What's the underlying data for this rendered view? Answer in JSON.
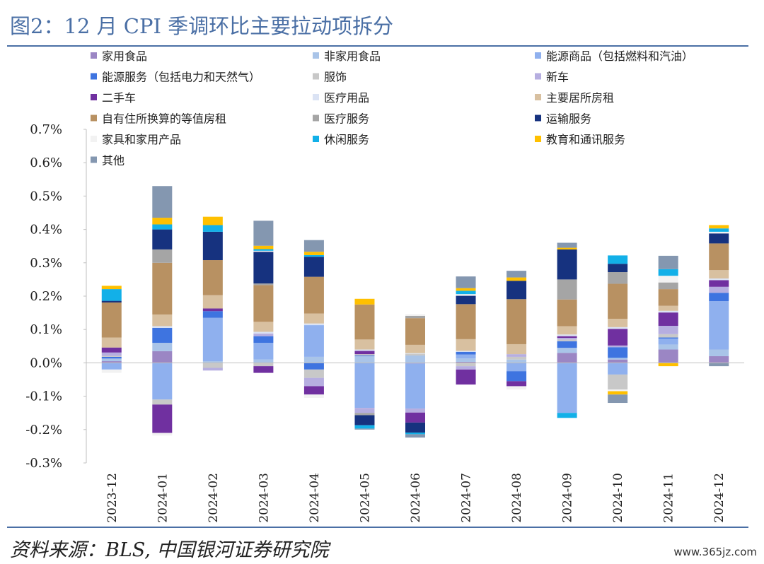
{
  "title": "图2：12 月 CPI 季调环比主要拉动项拆分",
  "source": "资料来源：BLS, 中国银河证券研究院",
  "watermark": "www.365jz.com",
  "chart_data": {
    "type": "bar",
    "stacked": true,
    "title": "图2：12 月 CPI 季调环比主要拉动项拆分",
    "xlabel": "",
    "ylabel": "",
    "ylim": [
      -0.3,
      0.7
    ],
    "yticks": [
      "-0.3%",
      "-0.2%",
      "-0.1%",
      "0.0%",
      "0.1%",
      "0.2%",
      "0.3%",
      "0.4%",
      "0.5%",
      "0.6%",
      "0.7%"
    ],
    "categories": [
      "2023-12",
      "2024-01",
      "2024-02",
      "2024-03",
      "2024-04",
      "2024-05",
      "2024-06",
      "2024-07",
      "2024-08",
      "2024-09",
      "2024-10",
      "2024-11",
      "2024-12"
    ],
    "legend_position": "top",
    "series": [
      {
        "name": "家用食品",
        "color": "#9b86c4",
        "values": [
          0.005,
          0.035,
          0.0,
          0.0,
          0.0,
          0.0,
          -0.002,
          0.003,
          0.0,
          0.03,
          0.01,
          0.04,
          0.02
        ]
      },
      {
        "name": "非家用食品",
        "color": "#a9c4e8",
        "values": [
          0.008,
          0.025,
          0.005,
          0.01,
          0.018,
          0.02,
          0.022,
          0.01,
          0.01,
          0.015,
          0.005,
          0.015,
          0.02
        ]
      },
      {
        "name": "能源商品（包括燃料和汽油）",
        "color": "#8fb0ee",
        "values": [
          -0.02,
          -0.11,
          0.13,
          0.05,
          0.095,
          -0.135,
          -0.135,
          0.012,
          -0.025,
          -0.15,
          -0.035,
          0.018,
          0.145
        ]
      },
      {
        "name": "能源服务（包括电力和天然气）",
        "color": "#3e74e0",
        "values": [
          0.005,
          0.045,
          0.02,
          0.02,
          -0.02,
          0.002,
          0.0,
          0.008,
          -0.03,
          0.02,
          0.032,
          0.003,
          0.025
        ]
      },
      {
        "name": "服饰",
        "color": "#c8c8c8",
        "values": [
          0.003,
          -0.015,
          -0.015,
          -0.01,
          -0.025,
          0.004,
          0.005,
          -0.01,
          0.008,
          0.005,
          -0.045,
          0.01,
          0.0
        ]
      },
      {
        "name": "新车",
        "color": "#b6aee0",
        "values": [
          0.01,
          0.0,
          -0.008,
          0.008,
          -0.025,
          -0.015,
          -0.012,
          -0.01,
          0.008,
          0.005,
          0.005,
          0.025,
          0.018
        ]
      },
      {
        "name": "二手车",
        "color": "#7030a0",
        "values": [
          0.015,
          -0.085,
          0.008,
          -0.02,
          -0.025,
          0.01,
          -0.03,
          -0.045,
          -0.015,
          0.005,
          0.05,
          0.04,
          0.02
        ]
      },
      {
        "name": "医疗用品",
        "color": "#dbe3f4",
        "values": [
          0.0,
          0.005,
          0.0,
          0.005,
          0.005,
          0.004,
          0.002,
          0.003,
          0.0,
          0.005,
          0.005,
          0.005,
          0.005
        ]
      },
      {
        "name": "主要居所房租",
        "color": "#d8c0a0",
        "values": [
          0.03,
          0.035,
          0.04,
          0.03,
          0.03,
          0.03,
          0.025,
          0.035,
          0.03,
          0.025,
          0.025,
          0.015,
          0.025
        ]
      },
      {
        "name": "自有住所换算的等值房租",
        "color": "#b89162",
        "values": [
          0.105,
          0.155,
          0.105,
          0.11,
          0.11,
          0.105,
          0.08,
          0.105,
          0.135,
          0.08,
          0.105,
          0.05,
          0.08
        ]
      },
      {
        "name": "医疗服务",
        "color": "#a5a5a5",
        "values": [
          0.0,
          0.04,
          0.0,
          0.005,
          0.0,
          -0.007,
          0.007,
          0.0,
          0.0,
          0.06,
          0.035,
          0.02,
          0.0
        ]
      },
      {
        "name": "运输服务",
        "color": "#16327f",
        "values": [
          0.005,
          0.06,
          0.085,
          0.095,
          0.06,
          -0.03,
          -0.03,
          0.025,
          0.055,
          0.09,
          0.025,
          0.0,
          0.03
        ]
      },
      {
        "name": "家具和家用产品",
        "color": "#f2f2f2",
        "values": [
          -0.01,
          -0.008,
          0.0,
          0.003,
          -0.01,
          0.0,
          0.005,
          0.005,
          -0.01,
          0.0,
          -0.005,
          0.02,
          0.005
        ]
      },
      {
        "name": "休闲服务",
        "color": "#12b0e8",
        "values": [
          0.035,
          0.015,
          0.02,
          0.005,
          0.005,
          -0.01,
          -0.005,
          0.01,
          0.0,
          -0.015,
          0.025,
          0.02,
          0.01
        ]
      },
      {
        "name": "教育和通讯服务",
        "color": "#ffc000",
        "values": [
          0.01,
          0.02,
          0.025,
          0.01,
          0.01,
          0.017,
          0.0,
          0.008,
          0.01,
          0.005,
          -0.01,
          -0.01,
          0.01
        ]
      },
      {
        "name": "其他",
        "color": "#8497b0",
        "values": [
          0.0,
          0.095,
          0.0,
          0.075,
          0.035,
          -0.003,
          -0.01,
          0.035,
          0.02,
          0.015,
          -0.025,
          0.04,
          -0.01
        ]
      }
    ]
  }
}
